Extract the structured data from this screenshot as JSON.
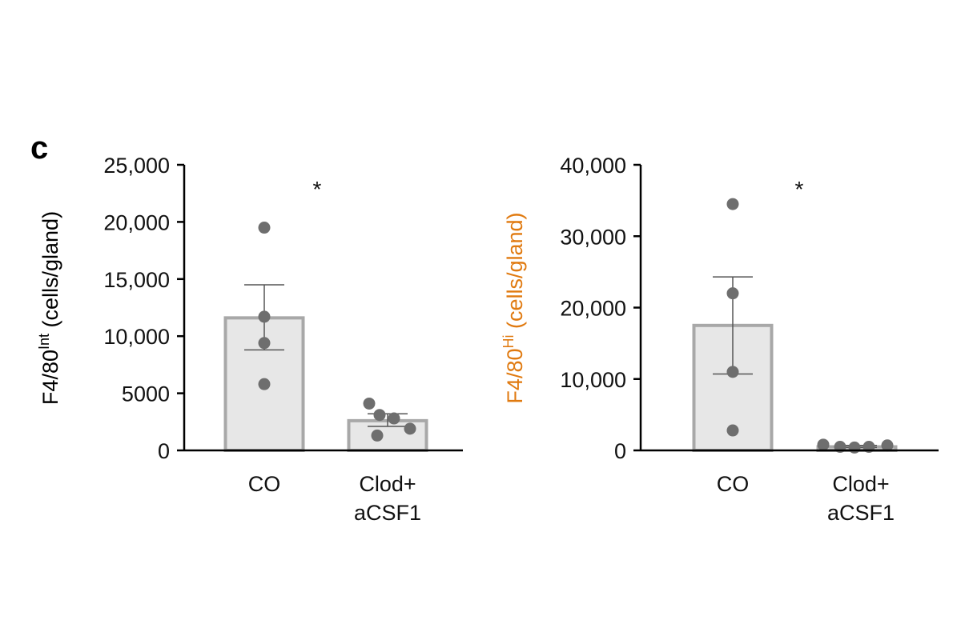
{
  "panel_label": "c",
  "colors": {
    "bar_fill": "#e7e7e7",
    "bar_stroke": "#a8a8a8",
    "point": "#6e6e6e",
    "axis": "#000000",
    "error": "#555555",
    "left_ylabel": "#000000",
    "right_ylabel": "#e07a10"
  },
  "chart_data": [
    {
      "type": "bar",
      "categories": [
        [
          "CO"
        ],
        [
          "Clod+",
          "aCSF1"
        ]
      ],
      "ylim": [
        0,
        25000
      ],
      "yticks": [
        0,
        5000,
        10000,
        15000,
        20000,
        25000
      ],
      "ytick_labels": [
        "0",
        "5000",
        "10,000",
        "15,000",
        "20,000",
        "25,000"
      ],
      "ylabel_main": "F4/80",
      "ylabel_sup": "Int",
      "ylabel_unit": " (cells/gland)",
      "values": [
        11600,
        2600
      ],
      "error": [
        [
          8800,
          14500
        ],
        [
          2100,
          3200
        ]
      ],
      "points": [
        [
          19500,
          11700,
          9400,
          5800
        ],
        [
          4100,
          3100,
          2800,
          1900,
          1300
        ]
      ],
      "significance": "*"
    },
    {
      "type": "bar",
      "categories": [
        [
          "CO"
        ],
        [
          "Clod+",
          "aCSF1"
        ]
      ],
      "ylim": [
        0,
        40000
      ],
      "yticks": [
        0,
        10000,
        20000,
        30000,
        40000
      ],
      "ytick_labels": [
        "0",
        "10,000",
        "20,000",
        "30,000",
        "40,000"
      ],
      "ylabel_main": "F4/80",
      "ylabel_sup": "Hi",
      "ylabel_unit": " (cells/gland)",
      "values": [
        17500,
        500
      ],
      "error": [
        [
          10700,
          24300
        ],
        [
          400,
          700
        ]
      ],
      "points": [
        [
          34500,
          22000,
          11000,
          2800
        ],
        [
          800,
          500,
          400,
          500,
          700
        ]
      ],
      "significance": "*"
    }
  ]
}
